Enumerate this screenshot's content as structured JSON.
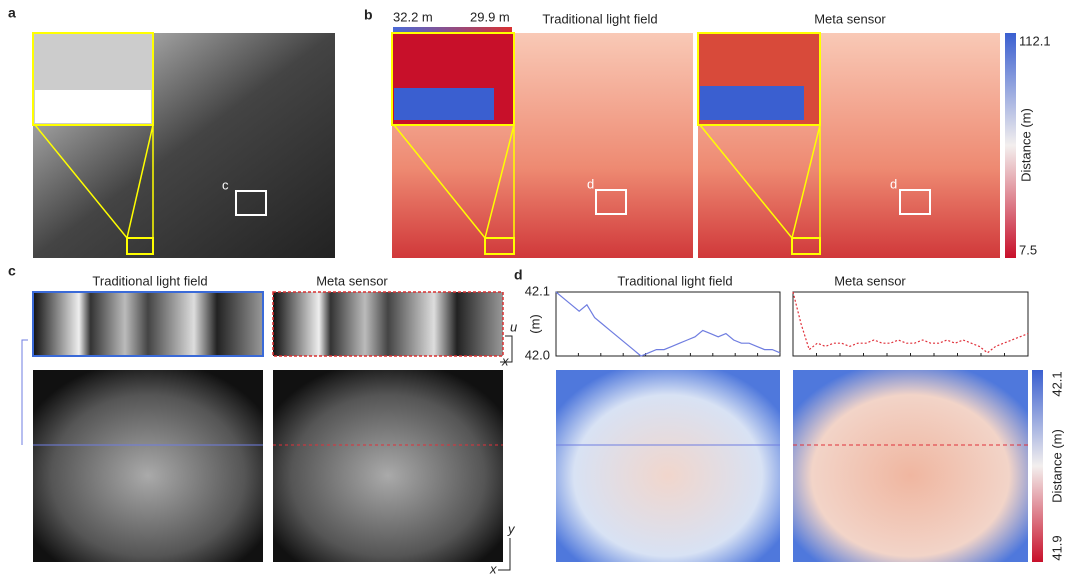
{
  "panel_labels": [
    "a",
    "b",
    "c",
    "d"
  ],
  "panel_a": {
    "box_label": "c"
  },
  "panel_b": {
    "scale_left": "32.2 m",
    "scale_right": "29.9 m",
    "titles": [
      "Traditional light field",
      "Meta sensor"
    ],
    "box_label": "d",
    "colorbar": {
      "max": 112.1,
      "label": "Distance (m)",
      "min": 7.5
    }
  },
  "panel_c": {
    "titles": [
      "Traditional light field",
      "Meta sensor"
    ],
    "axis_u": "u",
    "axis_x_top": "x",
    "axis_y": "y",
    "axis_x_bottom": "x"
  },
  "panel_d": {
    "titles": [
      "Traditional light field",
      "Meta sensor"
    ],
    "ylabel": "(m)",
    "ylim": [
      42.0,
      42.1
    ],
    "yticks": [
      {
        "value": 42.0,
        "label": "42.0"
      },
      42.1
    ],
    "series": [
      {
        "color": "#6f7de0",
        "values": [
          42.1,
          42.09,
          42.08,
          42.07,
          42.08,
          42.06,
          42.05,
          42.04,
          42.03,
          42.02,
          42.01,
          42.0,
          42.005,
          42.01,
          42.01,
          42.015,
          42.02,
          42.025,
          42.03,
          42.04,
          42.035,
          42.03,
          42.035,
          42.025,
          42.02,
          42.02,
          42.015,
          42.01,
          42.01,
          42.005
        ]
      },
      {
        "color": "#e0303a",
        "values": [
          42.1,
          42.05,
          42.01,
          42.02,
          42.015,
          42.02,
          42.02,
          42.015,
          42.02,
          42.02,
          42.025,
          42.02,
          42.02,
          42.025,
          42.02,
          42.02,
          42.025,
          42.02,
          42.02,
          42.025,
          42.02,
          42.025,
          42.02,
          42.015,
          42.005,
          42.015,
          42.02,
          42.025,
          42.03,
          42.035
        ]
      }
    ],
    "colorbar": {
      "max": 42.1,
      "label": "Distance (m)",
      "min": 41.9
    }
  }
}
